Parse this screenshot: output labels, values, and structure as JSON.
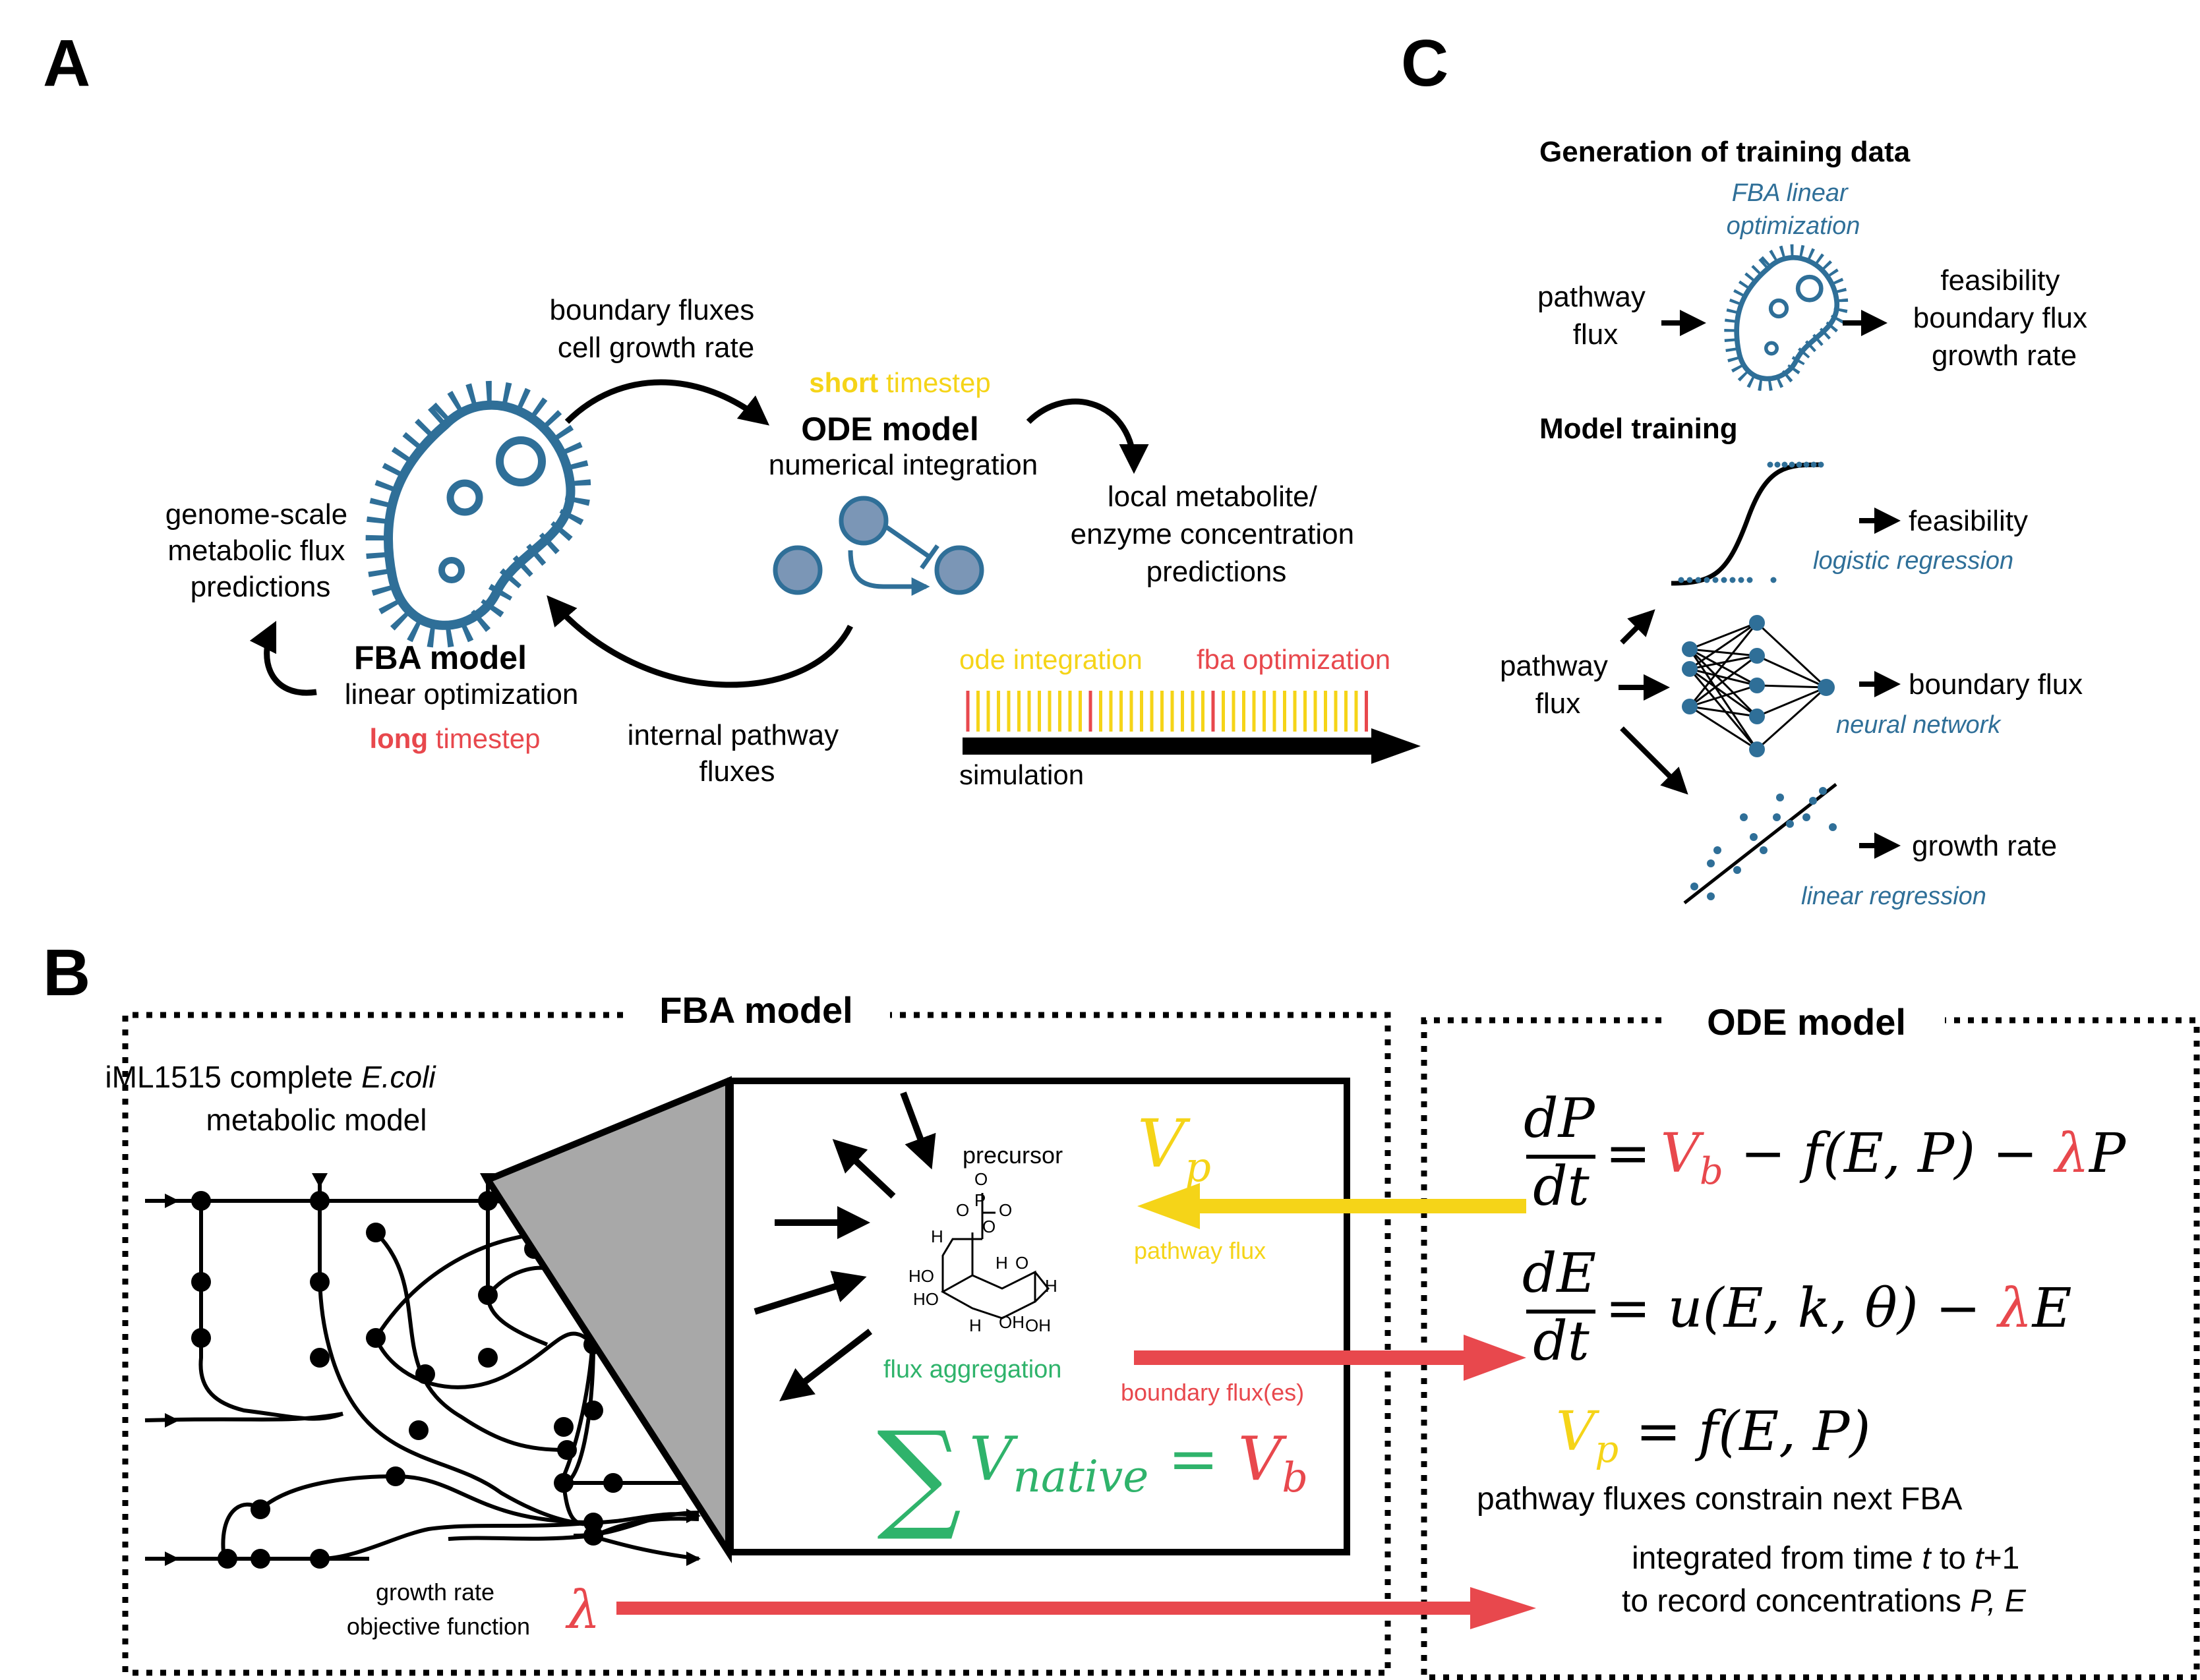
{
  "panel_a": {
    "letter": "A",
    "genome_scale": [
      "genome-scale",
      "metabolic flux",
      "predictions"
    ],
    "boundary_fluxes": [
      "boundary fluxes",
      "cell growth rate"
    ],
    "short_word": "short",
    "timestep_word": " timestep",
    "ode_model_title": "ODE model",
    "ode_model_sub": "numerical integration",
    "local_metabolite": [
      "local metabolite/",
      "enzyme concentration",
      "predictions"
    ],
    "fba_model_title": "FBA model",
    "fba_model_sub": "linear optimization",
    "long_word": "long",
    "internal_pathway": [
      "internal pathway",
      "fluxes"
    ],
    "ode_integration": "ode integration",
    "fba_optimization": "fba optimization",
    "simulation": "simulation"
  },
  "panel_b": {
    "letter": "B",
    "fba_box_title": "FBA model",
    "ode_box_title": "ODE model",
    "iml_line1_pre": "iML1515 complete ",
    "iml_line1_italic": "E.coli",
    "iml_line2": "metabolic model",
    "growth_rate_obj": [
      "growth rate",
      "objective function"
    ],
    "lambda": "λ",
    "precursor": "precursor",
    "vp_v": "V",
    "vp_sub": "p",
    "pathway_flux": "pathway flux",
    "flux_aggregation": "flux aggregation",
    "boundary_fluxes_label": "boundary flux(es)",
    "sum_symbol": "∑",
    "sum_v": "V",
    "sum_native": "native",
    "sum_eq": " = ",
    "sum_vb_v": "V",
    "sum_vb_b": "b",
    "eq1": {
      "num": "dP",
      "den": "dt",
      "eq": "=",
      "vb_v": "V",
      "vb_b": "b",
      "mid": " − f(E, P)  − ",
      "lambda": "λ",
      "tail": "P"
    },
    "eq2": {
      "num": "dE",
      "den": "dt",
      "mid": "= u(E, k, θ) − ",
      "lambda": "λ",
      "tail": "E"
    },
    "eq3": {
      "vp_v": "V",
      "vp_p": "p",
      "rhs": " = f(E, P)"
    },
    "constrain_text": "pathway fluxes constrain next FBA",
    "integrated_line1_pre": "integrated from time ",
    "integrated_t": "t",
    "integrated_mid": " to ",
    "integrated_t1": "t",
    "integrated_plus": "+1",
    "integrated_line2_pre": "to record concentrations ",
    "integrated_pe": "P, E"
  },
  "panel_c": {
    "letter": "C",
    "gen_title": "Generation of training data",
    "fba_linear": [
      "FBA linear",
      "optimization"
    ],
    "pathway_flux_top": [
      "pathway",
      "flux"
    ],
    "outputs": [
      "feasibility",
      "boundary flux",
      "growth rate"
    ],
    "model_training": "Model training",
    "pathway_flux_bottom": [
      "pathway",
      "flux"
    ],
    "feasibility": "feasibility",
    "logistic_regression": "logistic regression",
    "boundary_flux": "boundary flux",
    "neural_network": "neural network",
    "growth_rate": "growth rate",
    "linear_regression": "linear regression"
  },
  "colors": {
    "blue": "#2f6f98",
    "yellow": "#f5d418",
    "red": "#e8484d",
    "green": "#2fb36b",
    "black": "#000000",
    "grey": "#a8a8a8",
    "enzyme_fill": "#7b96b6"
  }
}
